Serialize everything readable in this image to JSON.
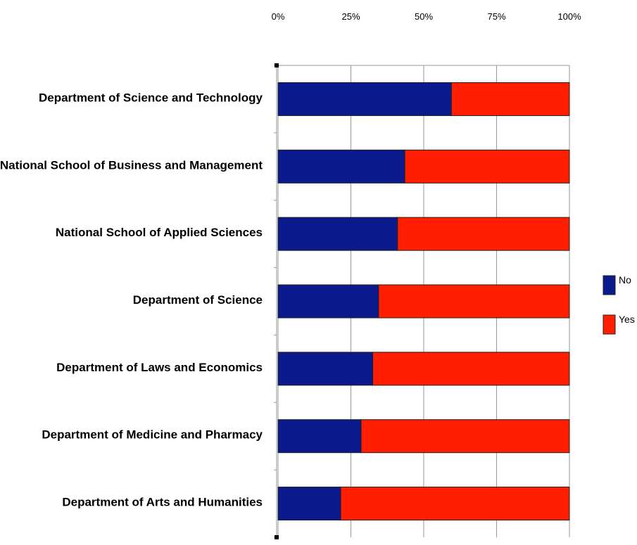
{
  "chart_data": {
    "type": "bar",
    "orientation": "horizontal",
    "stacked": true,
    "normalized": true,
    "categories": [
      "Department of Science and Technology",
      "National School of Business and Management",
      "National School of Applied Sciences",
      "Department of Science",
      "Department of Laws and Economics",
      "Department of Medicine and Pharmacy",
      "Department of Arts and Humanities"
    ],
    "series": [
      {
        "name": "No",
        "color": "#0a1a8c",
        "values": [
          59.5,
          43.5,
          41,
          34.5,
          32.5,
          28.5,
          21.5
        ]
      },
      {
        "name": "Yes",
        "color": "#ff1e00",
        "values": [
          40.5,
          56.5,
          59,
          65.5,
          67.5,
          71.5,
          78.5
        ]
      }
    ],
    "x_ticks": [
      "0%",
      "25%",
      "50%",
      "75%",
      "100%"
    ],
    "xlim": [
      0,
      100
    ],
    "grid": true,
    "axis_position": "top",
    "legend_position": "right",
    "title": "",
    "xlabel": "",
    "ylabel": ""
  }
}
